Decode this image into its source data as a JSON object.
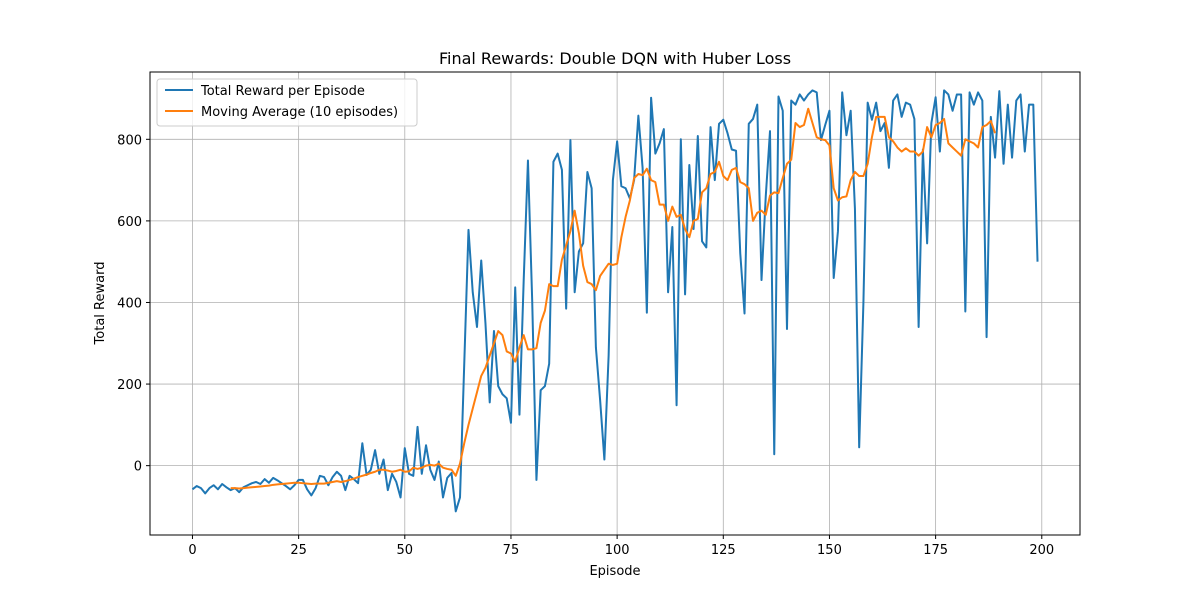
{
  "chart_data": {
    "type": "line",
    "title": "Final Rewards: Double DQN with Huber Loss",
    "xlabel": "Episode",
    "ylabel": "Total Reward",
    "xlim": [
      -10,
      209
    ],
    "ylim": [
      -170,
      965
    ],
    "xticks": [
      0,
      25,
      50,
      75,
      100,
      125,
      150,
      175,
      200
    ],
    "yticks": [
      0,
      200,
      400,
      600,
      800
    ],
    "grid": true,
    "legend_position": "upper-left",
    "series": [
      {
        "name": "Total Reward per Episode",
        "color": "#1f77b4",
        "x_start": 0,
        "values": [
          -58,
          -50,
          -55,
          -68,
          -55,
          -48,
          -58,
          -45,
          -53,
          -60,
          -55,
          -65,
          -53,
          -48,
          -43,
          -40,
          -45,
          -33,
          -42,
          -30,
          -36,
          -43,
          -50,
          -58,
          -48,
          -35,
          -35,
          -58,
          -73,
          -55,
          -25,
          -28,
          -48,
          -28,
          -15,
          -25,
          -60,
          -25,
          -33,
          -43,
          55,
          -23,
          -10,
          38,
          -20,
          15,
          -60,
          -20,
          -40,
          -78,
          43,
          -20,
          -25,
          95,
          -20,
          50,
          -10,
          -35,
          10,
          -78,
          -30,
          -18,
          -112,
          -78,
          250,
          578,
          425,
          340,
          503,
          348,
          155,
          330,
          195,
          175,
          165,
          105,
          437,
          125,
          455,
          748,
          405,
          -35,
          185,
          195,
          250,
          745,
          765,
          725,
          385,
          798,
          425,
          525,
          545,
          720,
          680,
          290,
          160,
          15,
          270,
          700,
          795,
          685,
          680,
          655,
          700,
          858,
          730,
          375,
          902,
          765,
          790,
          825,
          425,
          585,
          148,
          800,
          420,
          737,
          580,
          808,
          550,
          535,
          830,
          700,
          838,
          848,
          815,
          775,
          772,
          520,
          373,
          838,
          850,
          885,
          455,
          660,
          820,
          28,
          905,
          870,
          335,
          895,
          885,
          910,
          895,
          910,
          920,
          915,
          798,
          835,
          870,
          460,
          575,
          915,
          810,
          870,
          630,
          45,
          400,
          890,
          848,
          890,
          820,
          840,
          730,
          895,
          910,
          855,
          890,
          885,
          850,
          340,
          775,
          545,
          840,
          903,
          770,
          920,
          910,
          870,
          910,
          910,
          378,
          915,
          885,
          915,
          895,
          315,
          855,
          755,
          918,
          740,
          885,
          755,
          895,
          910,
          770,
          885,
          885,
          500
        ]
      },
      {
        "name": "Moving Average (10 episodes)",
        "color": "#ff7f0e",
        "x_start": 9,
        "values": [
          -55,
          -55,
          -56,
          -55,
          -54,
          -53,
          -52,
          -51,
          -50,
          -49,
          -47,
          -46,
          -45,
          -44,
          -43,
          -42,
          -42,
          -43,
          -44,
          -45,
          -44,
          -44,
          -44,
          -42,
          -40,
          -38,
          -40,
          -38,
          -35,
          -32,
          -28,
          -25,
          -22,
          -18,
          -15,
          -10,
          -10,
          -12,
          -15,
          -13,
          -10,
          -15,
          -14,
          -5,
          -8,
          -5,
          0,
          2,
          0,
          5,
          -5,
          -8,
          -10,
          -25,
          5,
          55,
          100,
          140,
          180,
          220,
          240,
          270,
          300,
          330,
          320,
          280,
          275,
          255,
          290,
          320,
          285,
          285,
          288,
          350,
          380,
          445,
          440,
          440,
          505,
          540,
          575,
          625,
          570,
          490,
          450,
          445,
          430,
          465,
          480,
          495,
          492,
          495,
          560,
          610,
          650,
          705,
          715,
          712,
          728,
          700,
          695,
          640,
          640,
          600,
          635,
          610,
          615,
          580,
          560,
          600,
          605,
          670,
          680,
          715,
          720,
          745,
          710,
          700,
          725,
          730,
          695,
          690,
          680,
          600,
          620,
          625,
          615,
          662,
          670,
          668,
          705,
          740,
          750,
          840,
          830,
          835,
          875,
          840,
          805,
          800,
          798,
          785,
          680,
          650,
          658,
          660,
          700,
          720,
          710,
          710,
          740,
          805,
          855,
          855,
          855,
          805,
          795,
          780,
          770,
          778,
          770,
          770,
          760,
          770,
          830,
          805,
          835,
          840,
          850,
          790,
          780,
          770,
          760,
          800,
          795,
          790,
          780,
          830,
          835,
          845,
          815
        ]
      }
    ]
  }
}
